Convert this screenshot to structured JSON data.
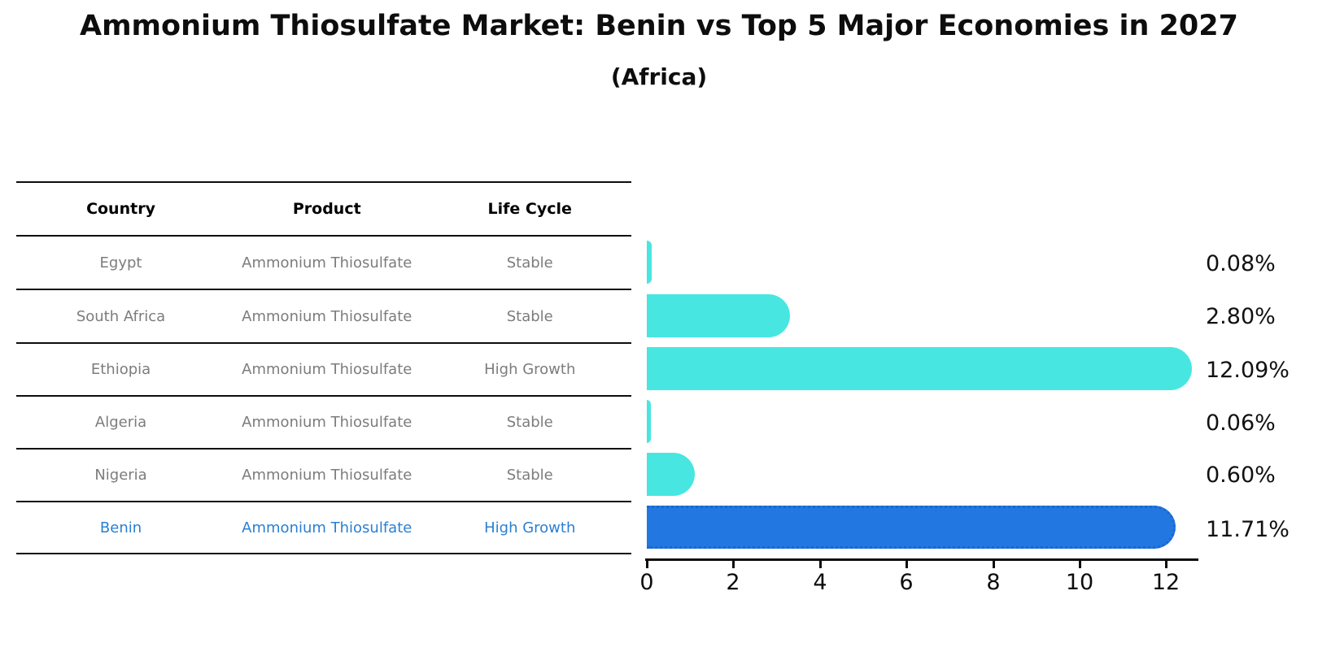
{
  "title": "Ammonium Thiosulfate Market: Benin vs Top 5 Major Economies in 2027",
  "subtitle": "(Africa)",
  "colors": {
    "bar_default": "#48e6e1",
    "bar_highlight": "#2278e0",
    "highlight_text": "#2a7fd4",
    "table_text": "#7c7c7c",
    "header_text": "#000000",
    "axis": "#0d0d0d"
  },
  "table": {
    "headers": [
      "Country",
      "Product",
      "Life Cycle"
    ],
    "rows": [
      {
        "country": "Egypt",
        "product": "Ammonium Thiosulfate",
        "life_cycle": "Stable",
        "highlighted": false
      },
      {
        "country": "South Africa",
        "product": "Ammonium Thiosulfate",
        "life_cycle": "Stable",
        "highlighted": false
      },
      {
        "country": "Ethiopia",
        "product": "Ammonium Thiosulfate",
        "life_cycle": "High Growth",
        "highlighted": false
      },
      {
        "country": "Algeria",
        "product": "Ammonium Thiosulfate",
        "life_cycle": "Stable",
        "highlighted": false
      },
      {
        "country": "Nigeria",
        "product": "Ammonium Thiosulfate",
        "life_cycle": "Stable",
        "highlighted": false
      },
      {
        "country": "Benin",
        "product": "Ammonium Thiosulfate",
        "life_cycle": "High Growth",
        "highlighted": true
      }
    ]
  },
  "chart_data": {
    "type": "bar",
    "orientation": "horizontal",
    "title": "Ammonium Thiosulfate Market: Benin vs Top 5 Major Economies in 2027",
    "subtitle": "(Africa)",
    "categories": [
      "Egypt",
      "South Africa",
      "Ethiopia",
      "Algeria",
      "Nigeria",
      "Benin"
    ],
    "values": [
      0.08,
      2.8,
      12.09,
      0.06,
      0.6,
      11.71
    ],
    "value_labels": [
      "0.08%",
      "2.80%",
      "12.09%",
      "0.06%",
      "0.60%",
      "11.71%"
    ],
    "highlight_index": 5,
    "xticks": [
      "0",
      "2",
      "4",
      "6",
      "8",
      "10",
      "12"
    ],
    "xlim": [
      0,
      12.75
    ],
    "grid": false,
    "legend": false,
    "xlabel": "",
    "ylabel": ""
  }
}
